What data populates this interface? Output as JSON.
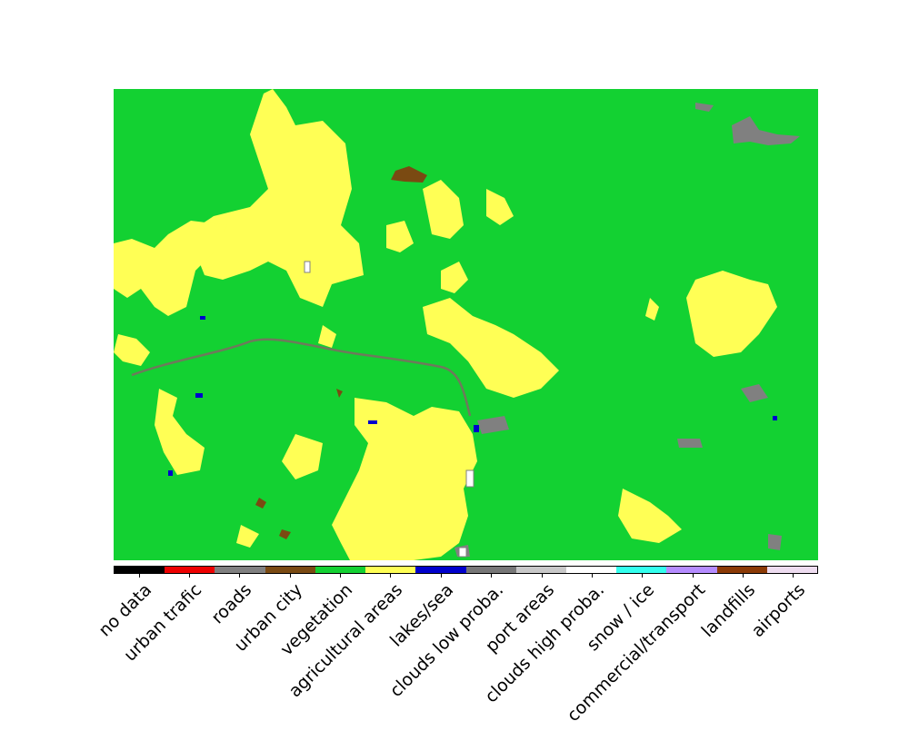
{
  "map": {
    "type": "land-cover classification",
    "background_class": "vegetation"
  },
  "legend": {
    "items": [
      {
        "label": "no data",
        "color": "#000000"
      },
      {
        "label": "urban trafic",
        "color": "#ee0000"
      },
      {
        "label": "roads",
        "color": "#808080"
      },
      {
        "label": "urban city",
        "color": "#7a4a12"
      },
      {
        "label": "vegetation",
        "color": "#13d132"
      },
      {
        "label": "agricultural areas",
        "color": "#ffff55"
      },
      {
        "label": "lakes/sea",
        "color": "#0000cc"
      },
      {
        "label": "clouds low proba.",
        "color": "#777777"
      },
      {
        "label": "port areas",
        "color": "#c8c8c8"
      },
      {
        "label": "clouds high proba.",
        "color": "#ffffff"
      },
      {
        "label": "snow / ice",
        "color": "#33ffee"
      },
      {
        "label": "commercial/transport",
        "color": "#b58cff"
      },
      {
        "label": "landfills",
        "color": "#8b3a06"
      },
      {
        "label": "airports",
        "color": "#eedcf0"
      }
    ]
  }
}
